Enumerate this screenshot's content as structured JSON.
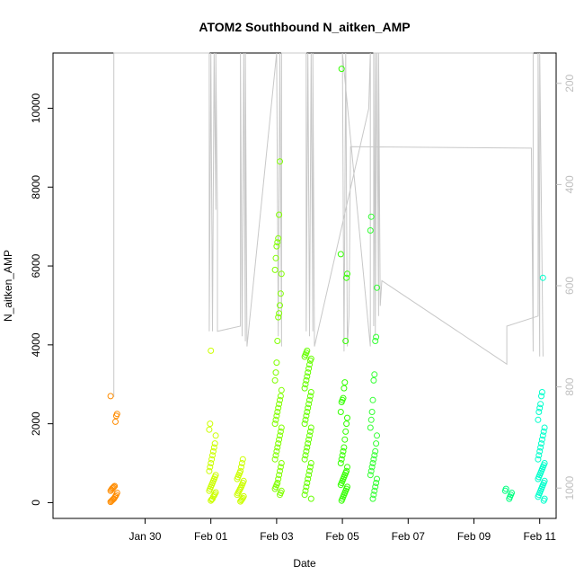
{
  "chart_data": {
    "type": "scatter",
    "title": "ATOM2 Southbound N_aitken_AMP",
    "xlabel": "Date",
    "ylabel": "N_aitken_AMP",
    "xlim": [
      -2.8,
      12.5
    ],
    "ylim": [
      -400,
      11400
    ],
    "y_ticks": [
      0,
      2000,
      4000,
      6000,
      8000,
      10000
    ],
    "x_ticks": [
      {
        "t": 0,
        "label": "Jan 30"
      },
      {
        "t": 2,
        "label": "Feb 01"
      },
      {
        "t": 4,
        "label": "Feb 03"
      },
      {
        "t": 6,
        "label": "Feb 05"
      },
      {
        "t": 8,
        "label": "Feb 07"
      },
      {
        "t": 10,
        "label": "Feb 09"
      },
      {
        "t": 12,
        "label": "Feb 11"
      }
    ],
    "secondary_axis": {
      "color": "#bfbfbf",
      "range": [
        1060,
        140
      ],
      "ticks": [
        200,
        400,
        600,
        800,
        1000
      ]
    },
    "marker": "open-circle",
    "clusters": [
      {
        "x": -0.95,
        "color": "#ff8c00",
        "values": [
          20,
          40,
          60,
          80,
          100,
          130,
          160,
          200,
          250,
          300,
          330,
          360,
          380,
          400,
          420,
          2050,
          2200,
          2250,
          2700
        ]
      },
      {
        "x": 2.05,
        "color": "#ccff00",
        "values": [
          50,
          80,
          100,
          150,
          180,
          220,
          260,
          300,
          350,
          400,
          450,
          500,
          550,
          600,
          650,
          700,
          800,
          900,
          1000,
          1100,
          1200,
          1300,
          1400,
          1500,
          1700,
          1850,
          2000,
          3850
        ]
      },
      {
        "x": 2.9,
        "color": "#ccff00",
        "values": [
          30,
          60,
          90,
          120,
          160,
          200,
          240,
          280,
          320,
          360,
          400,
          450,
          500,
          550,
          600,
          650,
          700,
          750,
          800,
          900,
          1000,
          1100
        ]
      },
      {
        "x": 4.05,
        "color": "#80ff00",
        "values": [
          200,
          250,
          300,
          350,
          400,
          450,
          500,
          600,
          700,
          800,
          900,
          1000,
          1100,
          1200,
          1300,
          1400,
          1500,
          1600,
          1700,
          1800,
          1900,
          2000,
          2100,
          2200,
          2300,
          2400,
          2500,
          2600,
          2700,
          2850,
          3100,
          3300,
          3550,
          4100,
          4700,
          4800,
          5000,
          5300,
          5800,
          5900,
          6200,
          6500,
          6600,
          6700,
          7300,
          8650
        ]
      },
      {
        "x": 4.95,
        "color": "#66ff00",
        "values": [
          100,
          200,
          300,
          400,
          500,
          600,
          700,
          800,
          900,
          1000,
          1100,
          1200,
          1300,
          1400,
          1500,
          1600,
          1700,
          1800,
          1900,
          2000,
          2100,
          2200,
          2300,
          2400,
          2500,
          2600,
          2700,
          2800,
          2900,
          3000,
          3100,
          3200,
          3300,
          3400,
          3500,
          3600,
          3650,
          3700,
          3750,
          3800,
          3850
        ]
      },
      {
        "x": 6.05,
        "color": "#33ff00",
        "values": [
          50,
          100,
          150,
          200,
          250,
          300,
          350,
          400,
          450,
          500,
          550,
          600,
          650,
          700,
          750,
          800,
          900,
          1000,
          1100,
          1200,
          1300,
          1400,
          1600,
          1800,
          2000,
          2150,
          2300,
          2550,
          2600,
          2650,
          2900,
          3050,
          4100,
          5700,
          5800,
          6300,
          11000
        ]
      },
      {
        "x": 6.95,
        "color": "#33ff33",
        "values": [
          100,
          200,
          300,
          400,
          500,
          600,
          700,
          800,
          900,
          1000,
          1100,
          1200,
          1300,
          1500,
          1700,
          1900,
          2100,
          2300,
          2600,
          3100,
          3250,
          4100,
          4200,
          5450,
          6900,
          7250
        ]
      },
      {
        "x": 11.05,
        "color": "#00ff80",
        "values": [
          100,
          150,
          200,
          250,
          300,
          350
        ]
      },
      {
        "x": 12.05,
        "color": "#00ffcc",
        "values": [
          50,
          100,
          150,
          200,
          250,
          300,
          350,
          400,
          450,
          500,
          550,
          600,
          650,
          700,
          750,
          800,
          850,
          900,
          950,
          1000,
          1100,
          1200,
          1300,
          1400,
          1500,
          1600,
          1700,
          1800,
          1900,
          2100,
          2300,
          2400,
          2500,
          2700,
          2800,
          5700
        ]
      }
    ],
    "secondary_line": {
      "color": "#c8c8c8",
      "points": [
        [
          -0.95,
          140
        ],
        [
          -0.95,
          820
        ],
        [
          -0.95,
          140
        ],
        [
          1.95,
          140
        ],
        [
          1.95,
          690
        ],
        [
          2.0,
          140
        ],
        [
          2.05,
          690
        ],
        [
          2.1,
          140
        ],
        [
          2.15,
          450
        ],
        [
          2.15,
          140
        ],
        [
          2.2,
          450
        ],
        [
          2.2,
          690
        ],
        [
          2.9,
          680
        ],
        [
          2.9,
          140
        ],
        [
          2.95,
          700
        ],
        [
          3.0,
          140
        ],
        [
          3.05,
          710
        ],
        [
          3.05,
          140
        ],
        [
          3.1,
          720
        ],
        [
          4.0,
          140
        ],
        [
          4.05,
          700
        ],
        [
          4.1,
          140
        ],
        [
          4.15,
          720
        ],
        [
          4.15,
          140
        ],
        [
          4.9,
          140
        ],
        [
          4.9,
          690
        ],
        [
          4.95,
          140
        ],
        [
          5.0,
          700
        ],
        [
          5.05,
          140
        ],
        [
          5.1,
          690
        ],
        [
          5.1,
          140
        ],
        [
          5.15,
          720
        ],
        [
          6.8,
          250
        ],
        [
          6.85,
          140
        ],
        [
          6.85,
          720
        ],
        [
          6.0,
          140
        ],
        [
          6.05,
          730
        ],
        [
          6.1,
          140
        ],
        [
          6.15,
          720
        ],
        [
          6.2,
          660
        ],
        [
          6.25,
          325
        ],
        [
          11.75,
          328
        ],
        [
          11.8,
          730
        ],
        [
          11.8,
          140
        ],
        [
          6.95,
          140
        ],
        [
          6.95,
          680
        ],
        [
          7.0,
          140
        ],
        [
          7.0,
          700
        ],
        [
          7.05,
          140
        ],
        [
          7.1,
          660
        ],
        [
          7.1,
          140
        ],
        [
          7.15,
          640
        ],
        [
          7.2,
          590
        ],
        [
          11.0,
          755
        ],
        [
          11.0,
          680
        ],
        [
          11.95,
          660
        ],
        [
          11.95,
          140
        ],
        [
          12.0,
          740
        ],
        [
          12.0,
          140
        ],
        [
          12.1,
          740
        ]
      ]
    }
  }
}
